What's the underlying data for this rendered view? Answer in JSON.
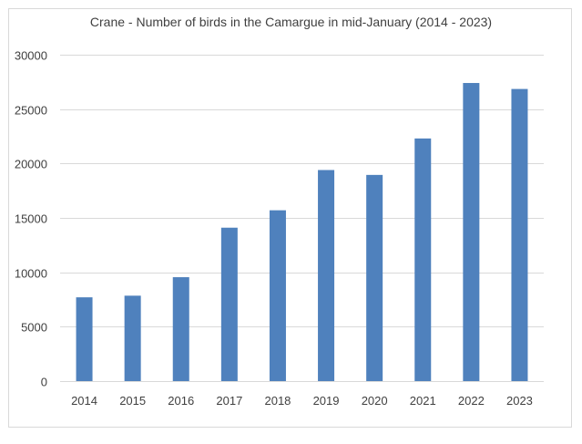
{
  "chart_data": {
    "type": "bar",
    "title": "Crane - Number of birds in the Camargue in mid-January (2014 - 2023)",
    "xlabel": "",
    "ylabel": "",
    "categories": [
      "2014",
      "2015",
      "2016",
      "2017",
      "2018",
      "2019",
      "2020",
      "2021",
      "2022",
      "2023"
    ],
    "values": [
      7700,
      7850,
      9550,
      14100,
      15700,
      19400,
      18950,
      22300,
      27400,
      26850
    ],
    "ylim": [
      0,
      30000
    ],
    "yticks": [
      0,
      5000,
      10000,
      15000,
      20000,
      25000,
      30000
    ],
    "ytick_labels": [
      "0",
      "5000",
      "10000",
      "15000",
      "20000",
      "25000",
      "30000"
    ],
    "grid": true,
    "legend": "none",
    "bar_color": "#4f81bd",
    "grid_color": "#d9d9d9",
    "text_color": "#404040"
  }
}
